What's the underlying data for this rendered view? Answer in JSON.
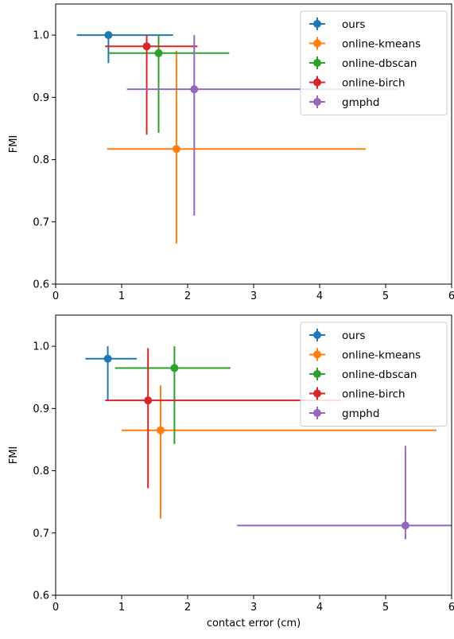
{
  "chart_data": [
    {
      "type": "scatter",
      "errorbars": true,
      "xlabel": "",
      "ylabel": "FMI",
      "xlim": [
        0,
        6
      ],
      "ylim": [
        0.6,
        1.05
      ],
      "xticks": [
        "0",
        "1",
        "2",
        "3",
        "4",
        "5",
        "6"
      ],
      "yticks": [
        "0.6",
        "0.7",
        "0.8",
        "0.9",
        "1.0"
      ],
      "legend": "top-right",
      "series": [
        {
          "name": "ours",
          "color": "#1f77b4",
          "x": 0.8,
          "y": 1.0,
          "xerr_low": 0.32,
          "xerr_high": 1.78,
          "yerr_low": 0.955,
          "yerr_high": 1.0
        },
        {
          "name": "online-kmeans",
          "color": "#ff7f0e",
          "x": 1.83,
          "y": 0.817,
          "xerr_low": 0.78,
          "xerr_high": 4.7,
          "yerr_low": 0.665,
          "yerr_high": 0.975
        },
        {
          "name": "online-dbscan",
          "color": "#2ca02c",
          "x": 1.56,
          "y": 0.971,
          "xerr_low": 0.8,
          "xerr_high": 2.63,
          "yerr_low": 0.843,
          "yerr_high": 1.0
        },
        {
          "name": "online-birch",
          "color": "#d62728",
          "x": 1.38,
          "y": 0.982,
          "xerr_low": 0.75,
          "xerr_high": 2.15,
          "yerr_low": 0.84,
          "yerr_high": 1.0
        },
        {
          "name": "gmphd",
          "color": "#9467bd",
          "x": 2.1,
          "y": 0.913,
          "xerr_low": 1.08,
          "xerr_high": 5.2,
          "yerr_low": 0.71,
          "yerr_high": 1.0
        }
      ]
    },
    {
      "type": "scatter",
      "errorbars": true,
      "xlabel": "contact error (cm)",
      "ylabel": "FMI",
      "xlim": [
        0,
        6
      ],
      "ylim": [
        0.6,
        1.05
      ],
      "xticks": [
        "0",
        "1",
        "2",
        "3",
        "4",
        "5",
        "6"
      ],
      "yticks": [
        "0.6",
        "0.7",
        "0.8",
        "0.9",
        "1.0"
      ],
      "legend": "top-right",
      "series": [
        {
          "name": "ours",
          "color": "#1f77b4",
          "x": 0.79,
          "y": 0.98,
          "xerr_low": 0.45,
          "xerr_high": 1.23,
          "yerr_low": 0.913,
          "yerr_high": 1.0
        },
        {
          "name": "online-kmeans",
          "color": "#ff7f0e",
          "x": 1.59,
          "y": 0.865,
          "xerr_low": 1.0,
          "xerr_high": 5.77,
          "yerr_low": 0.723,
          "yerr_high": 0.937
        },
        {
          "name": "online-dbscan",
          "color": "#2ca02c",
          "x": 1.8,
          "y": 0.965,
          "xerr_low": 0.9,
          "xerr_high": 2.65,
          "yerr_low": 0.843,
          "yerr_high": 1.0
        },
        {
          "name": "online-birch",
          "color": "#d62728",
          "x": 1.4,
          "y": 0.913,
          "xerr_low": 0.75,
          "xerr_high": 4.33,
          "yerr_low": 0.772,
          "yerr_high": 0.997
        },
        {
          "name": "gmphd",
          "color": "#9467bd",
          "x": 5.3,
          "y": 0.712,
          "xerr_low": 2.75,
          "xerr_high": 6.0,
          "yerr_low": 0.69,
          "yerr_high": 0.84
        }
      ]
    }
  ]
}
